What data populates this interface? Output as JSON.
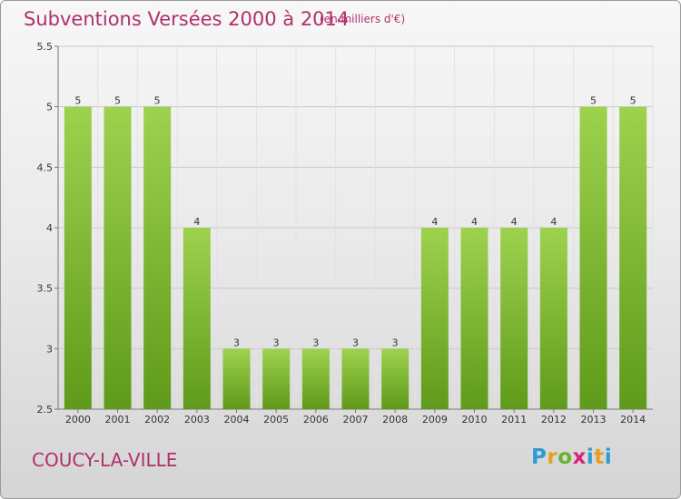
{
  "header": {
    "title": "Subventions Versées 2000 à 2014",
    "subtitle": "(en milliers d'€)"
  },
  "footer": {
    "commune": "COUCY-LA-VILLE",
    "logo": "Proxiti"
  },
  "colors": {
    "bar_light": "#9dd24e",
    "bar_dark": "#5f9a1a",
    "title": "#b0306a"
  },
  "chart_data": {
    "type": "bar",
    "categories": [
      "2000",
      "2001",
      "2002",
      "2003",
      "2004",
      "2005",
      "2006",
      "2007",
      "2008",
      "2009",
      "2010",
      "2011",
      "2012",
      "2013",
      "2014"
    ],
    "values": [
      5,
      5,
      5,
      4,
      3,
      3,
      3,
      3,
      3,
      4,
      4,
      4,
      4,
      5,
      5
    ],
    "ylim": [
      2.5,
      5.5
    ],
    "yticks": [
      "2.5",
      "3",
      "3.5",
      "4",
      "4.5",
      "5",
      "5.5"
    ],
    "grid": true
  }
}
